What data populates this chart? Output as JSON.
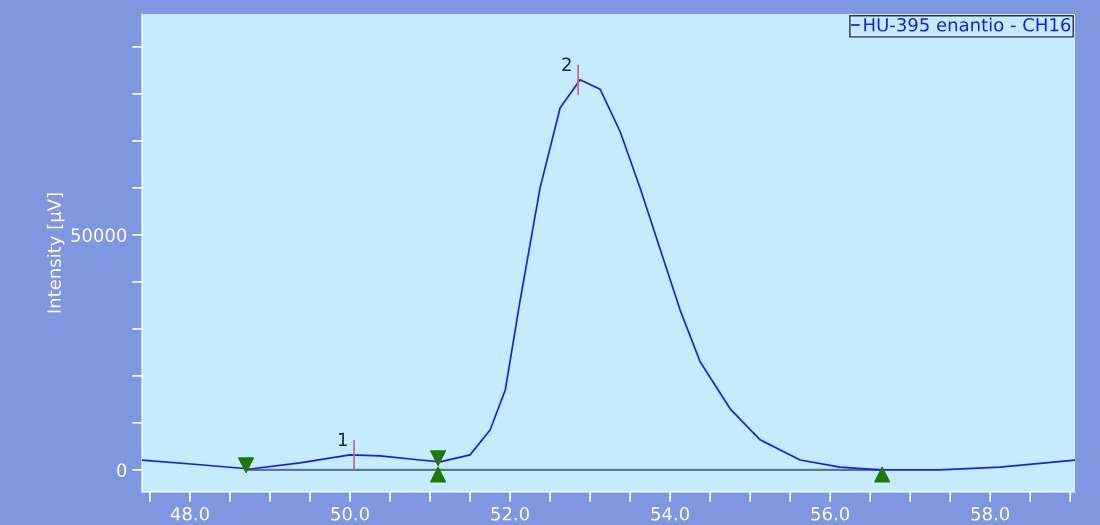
{
  "chart_data": {
    "type": "line",
    "ylabel": "Intensity [µV]",
    "series": [
      {
        "name": "HU-395 enantio - CH16",
        "color": "#1a1aff",
        "x": [
          47.4,
          48.13,
          48.75,
          49.375,
          50.0,
          50.375,
          50.875,
          51.125,
          51.5,
          51.75,
          51.94,
          52.125,
          52.375,
          52.625,
          52.875,
          53.125,
          53.375,
          53.625,
          53.875,
          54.125,
          54.375,
          54.75,
          55.125,
          55.625,
          56.125,
          56.625,
          57.375,
          58.125,
          59.06
        ],
        "values": [
          2100,
          1100,
          200,
          1500,
          3200,
          3000,
          2100,
          1700,
          3200,
          8500,
          17000,
          36000,
          60000,
          77000,
          83000,
          81000,
          72000,
          60000,
          47000,
          34000,
          23000,
          13000,
          6400,
          2100,
          600,
          0,
          0,
          600,
          2100
        ]
      },
      {
        "type": "line",
        "color": "#5a7a8a",
        "x": [
          48.7,
          51.1,
          56.65
        ],
        "values": [
          0,
          0,
          0
        ]
      },
      {
        "type": "scatter",
        "color": "#1f7a00",
        "marker": "triangle_down",
        "x": [
          48.7,
          51.1
        ],
        "values": [
          1000,
          2500
        ]
      },
      {
        "type": "scatter",
        "color": "#1f7a00",
        "marker": "triangle",
        "x": [
          51.1,
          56.65
        ],
        "values": [
          -1000,
          -1000
        ]
      }
    ],
    "annotations": [
      {
        "text": "1",
        "x": 50.05,
        "y": 3200
      },
      {
        "text": "2",
        "x": 52.85,
        "y": 83000
      }
    ],
    "xlim": [
      47.4,
      59.06
    ],
    "ylim": [
      -4700,
      97000
    ],
    "xticks": [
      {
        "value": 47.5,
        "label": null
      },
      {
        "value": 48.0,
        "label": "48.0"
      },
      {
        "value": 48.5,
        "label": null
      },
      {
        "value": 49.0,
        "label": null
      },
      {
        "value": 49.5,
        "label": null
      },
      {
        "value": 50.0,
        "label": "50.0"
      },
      {
        "value": 50.5,
        "label": null
      },
      {
        "value": 51.0,
        "label": null
      },
      {
        "value": 51.5,
        "label": null
      },
      {
        "value": 52.0,
        "label": "52.0"
      },
      {
        "value": 52.5,
        "label": null
      },
      {
        "value": 53.0,
        "label": null
      },
      {
        "value": 53.5,
        "label": null
      },
      {
        "value": 54.0,
        "label": "54.0"
      },
      {
        "value": 54.5,
        "label": null
      },
      {
        "value": 55.0,
        "label": null
      },
      {
        "value": 55.5,
        "label": null
      },
      {
        "value": 56.0,
        "label": "56.0"
      },
      {
        "value": 56.5,
        "label": null
      },
      {
        "value": 57.0,
        "label": null
      },
      {
        "value": 57.5,
        "label": null
      },
      {
        "value": 58.0,
        "label": "58.0"
      },
      {
        "value": 58.5,
        "label": null
      },
      {
        "value": 59.0,
        "label": null
      }
    ],
    "yticks": [
      0,
      {
        "value": 10000,
        "label": null
      },
      {
        "value": 20000,
        "label": null
      },
      {
        "value": 30000,
        "label": null
      },
      {
        "value": 40000,
        "label": null
      },
      50000,
      {
        "value": 60000,
        "label": null
      },
      {
        "value": 70000,
        "label": null
      },
      {
        "value": 80000,
        "label": null
      },
      {
        "value": 90000,
        "label": null
      }
    ],
    "legend": "top right",
    "grid": false
  }
}
